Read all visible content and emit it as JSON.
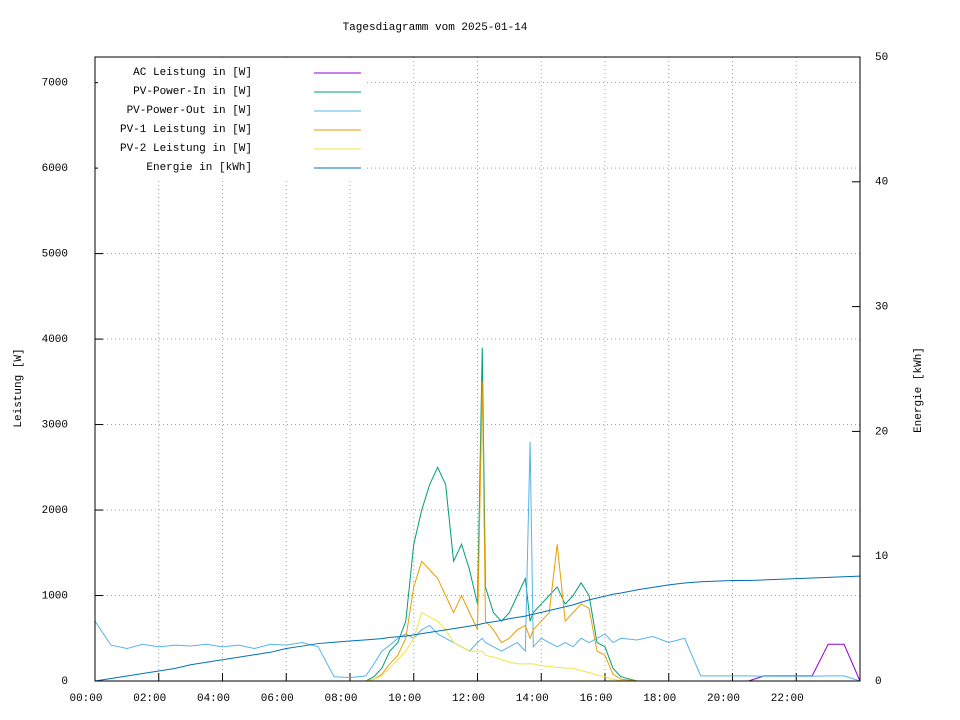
{
  "chart_data": {
    "type": "line",
    "title": "Tagesdiagramm vom 2025-01-14",
    "y_label": "Leistung [W]",
    "y2_label": "Energie [kWh]",
    "x": [
      0,
      0.5,
      1,
      1.5,
      2,
      2.5,
      3,
      3.5,
      4,
      4.5,
      5,
      5.5,
      6,
      6.5,
      7,
      7.5,
      8,
      8.5,
      8.75,
      9,
      9.25,
      9.5,
      9.75,
      10,
      10.25,
      10.5,
      10.75,
      11,
      11.25,
      11.5,
      11.75,
      12,
      12.15,
      12.25,
      12.5,
      12.75,
      13,
      13.25,
      13.5,
      13.65,
      13.75,
      14,
      14.25,
      14.5,
      14.75,
      15,
      15.25,
      15.5,
      15.75,
      16,
      16.25,
      16.5,
      17,
      17.5,
      18,
      18.5,
      19,
      19.5,
      20,
      20.5,
      21,
      21.5,
      22,
      22.5,
      23,
      23.5,
      24
    ],
    "xlim": [
      0,
      24
    ],
    "xticks": [
      {
        "value": 0,
        "label": "00:00"
      },
      {
        "value": 2,
        "label": "02:00"
      },
      {
        "value": 4,
        "label": "04:00"
      },
      {
        "value": 6,
        "label": "06:00"
      },
      {
        "value": 8,
        "label": "08:00"
      },
      {
        "value": 10,
        "label": "10:00"
      },
      {
        "value": 12,
        "label": "12:00"
      },
      {
        "value": 14,
        "label": "14:00"
      },
      {
        "value": 16,
        "label": "16:00"
      },
      {
        "value": 18,
        "label": "18:00"
      },
      {
        "value": 20,
        "label": "20:00"
      },
      {
        "value": 22,
        "label": "22:00"
      }
    ],
    "ylim": [
      0,
      7300
    ],
    "yticks": [
      0,
      1000,
      2000,
      3000,
      4000,
      5000,
      6000,
      7000
    ],
    "y2lim": [
      0,
      50
    ],
    "y2ticks": [
      0,
      10,
      20,
      30,
      40,
      50
    ],
    "grid": true,
    "legend": "top-left",
    "series": [
      {
        "name": "AC Leistung in [W]",
        "color": "#9400d3",
        "values": [
          0,
          0,
          0,
          0,
          0,
          0,
          0,
          0,
          0,
          0,
          0,
          0,
          0,
          0,
          0,
          0,
          0,
          0,
          0,
          0,
          0,
          0,
          0,
          0,
          0,
          0,
          0,
          0,
          0,
          0,
          0,
          0,
          0,
          0,
          0,
          0,
          0,
          0,
          0,
          0,
          0,
          0,
          0,
          0,
          0,
          0,
          0,
          0,
          0,
          0,
          0,
          0,
          0,
          0,
          0,
          0,
          0,
          0,
          0,
          0,
          60,
          60,
          60,
          60,
          430,
          430,
          0
        ]
      },
      {
        "name": "PV-Power-In in [W]",
        "color": "#009e73",
        "values": [
          0,
          0,
          0,
          0,
          0,
          0,
          0,
          0,
          0,
          0,
          0,
          0,
          0,
          0,
          0,
          0,
          0,
          0,
          50,
          150,
          350,
          450,
          700,
          1600,
          2000,
          2300,
          2500,
          2300,
          1400,
          1600,
          1300,
          900,
          3900,
          1100,
          800,
          700,
          800,
          1000,
          1200,
          700,
          800,
          900,
          1000,
          1100,
          900,
          1000,
          1150,
          1000,
          450,
          400,
          150,
          50,
          0,
          0,
          0,
          0,
          0,
          0,
          0,
          0,
          0,
          0,
          0,
          0,
          0,
          0,
          0
        ]
      },
      {
        "name": "PV-Power-Out in [W]",
        "color": "#56b4e9",
        "values": [
          700,
          420,
          380,
          430,
          400,
          420,
          410,
          430,
          400,
          420,
          380,
          430,
          420,
          450,
          400,
          50,
          40,
          60,
          200,
          350,
          420,
          500,
          550,
          500,
          600,
          650,
          550,
          500,
          450,
          400,
          350,
          450,
          500,
          450,
          400,
          350,
          400,
          450,
          350,
          2800,
          400,
          500,
          450,
          400,
          450,
          400,
          500,
          450,
          500,
          550,
          450,
          500,
          480,
          520,
          450,
          500,
          60,
          60,
          60,
          60,
          55,
          55,
          55,
          55,
          60,
          60,
          0
        ]
      },
      {
        "name": "PV-1 Leistung in [W]",
        "color": "#e69f00",
        "values": [
          0,
          0,
          0,
          0,
          0,
          0,
          0,
          0,
          0,
          0,
          0,
          0,
          0,
          0,
          0,
          0,
          0,
          0,
          20,
          80,
          200,
          300,
          500,
          1100,
          1400,
          1300,
          1200,
          1000,
          800,
          1000,
          800,
          600,
          3500,
          700,
          600,
          450,
          500,
          600,
          650,
          500,
          600,
          700,
          800,
          1600,
          700,
          800,
          900,
          850,
          350,
          300,
          80,
          20,
          0,
          0,
          0,
          0,
          0,
          0,
          0,
          0,
          0,
          0,
          0,
          0,
          0,
          0,
          0
        ]
      },
      {
        "name": "PV-2 Leistung in [W]",
        "color": "#f0e442",
        "values": [
          0,
          0,
          0,
          0,
          0,
          0,
          0,
          0,
          0,
          0,
          0,
          0,
          0,
          0,
          0,
          0,
          0,
          0,
          20,
          60,
          150,
          250,
          350,
          500,
          800,
          750,
          700,
          600,
          450,
          400,
          350,
          350,
          350,
          300,
          280,
          250,
          220,
          200,
          200,
          200,
          200,
          180,
          170,
          160,
          150,
          150,
          120,
          100,
          70,
          50,
          20,
          5,
          0,
          0,
          0,
          0,
          0,
          0,
          0,
          0,
          0,
          0,
          0,
          0,
          0,
          0,
          0
        ]
      },
      {
        "name": "Energie in [kWh]",
        "color": "#0072b2",
        "axis": "y2",
        "values": [
          0,
          0.2,
          0.4,
          0.6,
          0.8,
          1.0,
          1.3,
          1.5,
          1.7,
          1.9,
          2.1,
          2.3,
          2.6,
          2.8,
          3.0,
          3.1,
          3.2,
          3.3,
          3.35,
          3.4,
          3.5,
          3.55,
          3.6,
          3.7,
          3.8,
          3.9,
          4.0,
          4.1,
          4.2,
          4.3,
          4.4,
          4.5,
          4.6,
          4.65,
          4.75,
          4.85,
          5.0,
          5.1,
          5.2,
          5.3,
          5.35,
          5.5,
          5.65,
          5.8,
          5.95,
          6.1,
          6.3,
          6.5,
          6.65,
          6.8,
          6.95,
          7.05,
          7.3,
          7.5,
          7.7,
          7.85,
          7.95,
          8.0,
          8.05,
          8.05,
          8.1,
          8.15,
          8.2,
          8.25,
          8.3,
          8.35,
          8.4
        ]
      }
    ]
  }
}
